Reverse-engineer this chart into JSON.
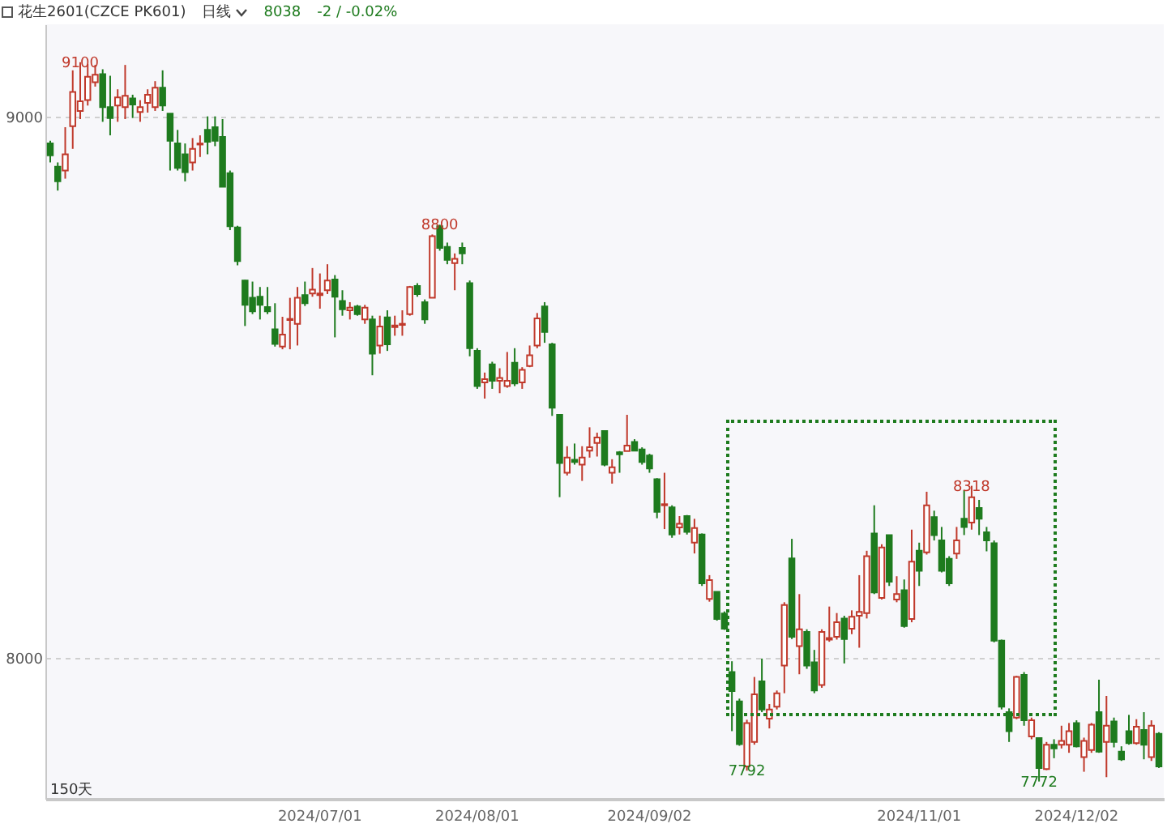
{
  "chart_data": {
    "type": "candlestick",
    "title": "花生2601(CZCE PK601)",
    "subtitle": "日线",
    "annotations": [
      "8038",
      "-2 / -0.02%",
      "150天",
      {
        "text": "9100",
        "y": 9100
      },
      {
        "text": "8800",
        "y": 8800
      },
      {
        "text": "8318",
        "y": 8318
      },
      {
        "text": "7792",
        "y": 7792
      },
      {
        "text": "7772",
        "y": 7772
      }
    ],
    "categories": [
      null,
      null,
      null,
      null,
      null,
      null,
      null,
      null,
      null,
      null,
      null,
      null,
      null,
      null,
      null,
      null,
      null,
      null,
      null,
      null,
      null,
      null,
      null,
      null,
      null,
      null,
      null,
      null,
      null,
      null,
      null,
      null,
      null,
      null,
      null,
      null,
      "2024/07/01",
      null,
      null,
      null,
      null,
      null,
      null,
      null,
      null,
      null,
      null,
      null,
      null,
      null,
      null,
      null,
      null,
      null,
      null,
      null,
      null,
      "2024/08/01",
      null,
      null,
      null,
      null,
      null,
      null,
      null,
      null,
      null,
      null,
      null,
      null,
      null,
      null,
      null,
      null,
      null,
      null,
      null,
      null,
      null,
      null,
      "2024/09/02",
      null,
      null,
      null,
      null,
      null,
      null,
      null,
      null,
      null,
      null,
      null,
      null,
      null,
      null,
      null,
      null,
      null,
      null,
      null,
      null,
      null,
      null,
      null,
      null,
      null,
      null,
      null,
      null,
      null,
      null,
      null,
      null,
      null,
      null,
      null,
      "2024/11/01",
      null,
      null,
      null,
      null,
      null,
      null,
      null,
      null,
      null,
      null,
      null,
      null,
      null,
      null,
      null,
      null,
      null,
      null,
      null,
      null,
      "2024/12/02",
      null,
      null,
      null,
      null,
      null,
      null,
      null,
      null,
      null,
      null,
      null
    ],
    "ohlc": [
      [
        8950,
        8955,
        8915,
        8928
      ],
      [
        8907,
        8915,
        8863,
        8880
      ],
      [
        8900,
        8980,
        8885,
        8930
      ],
      [
        8982,
        9085,
        8940,
        9045
      ],
      [
        9010,
        9100,
        8995,
        9028
      ],
      [
        9030,
        9097,
        9020,
        9073
      ],
      [
        9063,
        9095,
        9055,
        9077
      ],
      [
        9078,
        9087,
        8990,
        9017
      ],
      [
        9017,
        9075,
        8965,
        8997
      ],
      [
        9020,
        9050,
        8990,
        9035
      ],
      [
        9017,
        9095,
        8995,
        9038
      ],
      [
        9033,
        9040,
        8997,
        9022
      ],
      [
        9008,
        9030,
        8990,
        9017
      ],
      [
        9025,
        9050,
        9007,
        9040
      ],
      [
        9017,
        9065,
        9010,
        9053
      ],
      [
        9053,
        9085,
        9010,
        9020
      ],
      [
        9005,
        9005,
        8900,
        8955
      ],
      [
        8950,
        8975,
        8900,
        8905
      ],
      [
        8930,
        8950,
        8880,
        8897
      ],
      [
        8915,
        8960,
        8900,
        8940
      ],
      [
        8948,
        8965,
        8925,
        8950
      ],
      [
        8975,
        9000,
        8930,
        8953
      ],
      [
        8980,
        9000,
        8945,
        8955
      ],
      [
        8962,
        8995,
        8870,
        8870
      ],
      [
        8895,
        8900,
        8790,
        8797
      ],
      [
        8795,
        8798,
        8725,
        8733
      ],
      [
        8697,
        8698,
        8613,
        8652
      ],
      [
        8665,
        8695,
        8635,
        8640
      ],
      [
        8667,
        8685,
        8625,
        8652
      ],
      [
        8648,
        8685,
        8635,
        8640
      ],
      [
        8607,
        8655,
        8575,
        8580
      ],
      [
        8575,
        8630,
        8570,
        8597
      ],
      [
        8624,
        8665,
        8570,
        8626
      ],
      [
        8617,
        8685,
        8577,
        8665
      ],
      [
        8670,
        8695,
        8650,
        8655
      ],
      [
        8673,
        8720,
        8667,
        8680
      ],
      [
        8670,
        8710,
        8645,
        8673
      ],
      [
        8679,
        8727,
        8672,
        8697
      ],
      [
        8699,
        8707,
        8592,
        8667
      ],
      [
        8659,
        8679,
        8632,
        8644
      ],
      [
        8642,
        8657,
        8625,
        8647
      ],
      [
        8649,
        8652,
        8632,
        8635
      ],
      [
        8625,
        8652,
        8617,
        8647
      ],
      [
        8625,
        8632,
        8522,
        8562
      ],
      [
        8577,
        8632,
        8562,
        8612
      ],
      [
        8629,
        8642,
        8567,
        8579
      ],
      [
        8611,
        8632,
        8595,
        8614
      ],
      [
        8615,
        8642,
        8595,
        8617
      ],
      [
        8635,
        8687,
        8632,
        8685
      ],
      [
        8687,
        8692,
        8667,
        8672
      ],
      [
        8657,
        8662,
        8617,
        8625
      ],
      [
        8665,
        8782,
        8665,
        8779
      ],
      [
        8797,
        8800,
        8752,
        8757
      ],
      [
        8759,
        8767,
        8727,
        8735
      ],
      [
        8729,
        8747,
        8679,
        8737
      ],
      [
        8757,
        8767,
        8727,
        8747
      ],
      [
        8692,
        8697,
        8557,
        8572
      ],
      [
        8567,
        8572,
        8497,
        8502
      ],
      [
        8509,
        8527,
        8479,
        8515
      ],
      [
        8542,
        8547,
        8497,
        8512
      ],
      [
        8512,
        8535,
        8489,
        8517
      ],
      [
        8502,
        8565,
        8499,
        8512
      ],
      [
        8545,
        8572,
        8502,
        8507
      ],
      [
        8509,
        8537,
        8497,
        8532
      ],
      [
        8539,
        8577,
        8537,
        8559
      ],
      [
        8577,
        8637,
        8572,
        8627
      ],
      [
        8649,
        8657,
        8582,
        8602
      ],
      [
        8579,
        8582,
        8447,
        8462
      ],
      [
        8449,
        8449,
        8297,
        8360
      ],
      [
        8342,
        8391,
        8337,
        8370
      ],
      [
        8366,
        8396,
        8357,
        8362
      ],
      [
        8357,
        8391,
        8327,
        8370
      ],
      [
        8383,
        8426,
        8370,
        8389
      ],
      [
        8397,
        8416,
        8372,
        8407
      ],
      [
        8419,
        8419,
        8354,
        8357
      ],
      [
        8342,
        8367,
        8322,
        8352
      ],
      [
        8380,
        8382,
        8342,
        8376
      ],
      [
        8382,
        8449,
        8382,
        8392
      ],
      [
        8399,
        8404,
        8382,
        8383
      ],
      [
        8385,
        8389,
        8357,
        8362
      ],
      [
        8374,
        8377,
        8342,
        8350
      ],
      [
        8330,
        8332,
        8258,
        8270
      ],
      [
        8282,
        8342,
        8238,
        8284
      ],
      [
        8278,
        8282,
        8222,
        8228
      ],
      [
        8241,
        8262,
        8228,
        8248
      ],
      [
        8262,
        8264,
        8228,
        8233
      ],
      [
        8213,
        8257,
        8193,
        8240
      ],
      [
        8228,
        8230,
        8133,
        8138
      ],
      [
        8109,
        8153,
        8104,
        8144
      ],
      [
        8122,
        8122,
        8069,
        8072
      ],
      [
        8082,
        8086,
        8052,
        8054
      ],
      [
        7974,
        7994,
        7865,
        7939
      ],
      [
        7920,
        7925,
        7838,
        7841
      ],
      [
        7800,
        7886,
        7792,
        7880
      ],
      [
        7845,
        7965,
        7840,
        7933
      ],
      [
        7957,
        7999,
        7900,
        7905
      ],
      [
        7888,
        7915,
        7870,
        7905
      ],
      [
        7910,
        7940,
        7905,
        7935
      ],
      [
        7986,
        8103,
        7935,
        8098
      ],
      [
        8184,
        8220,
        8035,
        8039
      ],
      [
        8022,
        8118,
        7970,
        8053
      ],
      [
        8048,
        8053,
        7980,
        7986
      ],
      [
        7992,
        8015,
        7935,
        7940
      ],
      [
        7950,
        8053,
        7945,
        8048
      ],
      [
        8034,
        8095,
        8030,
        8037
      ],
      [
        8039,
        8083,
        8034,
        8066
      ],
      [
        8073,
        8078,
        7990,
        8035
      ],
      [
        8054,
        8088,
        8044,
        8076
      ],
      [
        8078,
        8153,
        8019,
        8085
      ],
      [
        8083,
        8198,
        8073,
        8188
      ],
      [
        8230,
        8282,
        8118,
        8121
      ],
      [
        8111,
        8210,
        8108,
        8204
      ],
      [
        8227,
        8227,
        8133,
        8141
      ],
      [
        8108,
        8151,
        8103,
        8118
      ],
      [
        8125,
        8145,
        8056,
        8059
      ],
      [
        8072,
        8237,
        8066,
        8178
      ],
      [
        8198,
        8213,
        8133,
        8161
      ],
      [
        8195,
        8307,
        8191,
        8282
      ],
      [
        8260,
        8272,
        8217,
        8227
      ],
      [
        8217,
        8242,
        8158,
        8161
      ],
      [
        8183,
        8188,
        8133,
        8138
      ],
      [
        8193,
        8242,
        8183,
        8217
      ],
      [
        8257,
        8310,
        8227,
        8242
      ],
      [
        8250,
        8318,
        8237,
        8297
      ],
      [
        8277,
        8292,
        8227,
        8257
      ],
      [
        8232,
        8242,
        8197,
        8217
      ],
      [
        8212,
        8217,
        8029,
        8032
      ],
      [
        8032,
        8034,
        7905,
        7910
      ],
      [
        7900,
        7907,
        7845,
        7865
      ],
      [
        7890,
        7967,
        7887,
        7965
      ],
      [
        7969,
        7974,
        7875,
        7885
      ],
      [
        7855,
        7890,
        7850,
        7885
      ],
      [
        7852,
        7852,
        7772,
        7797
      ],
      [
        7795,
        7845,
        7793,
        7840
      ],
      [
        7840,
        7850,
        7815,
        7833
      ],
      [
        7840,
        7875,
        7833,
        7847
      ],
      [
        7840,
        7880,
        7825,
        7865
      ],
      [
        7880,
        7885,
        7835,
        7837
      ],
      [
        7817,
        7853,
        7790,
        7847
      ],
      [
        7830,
        7880,
        7825,
        7877
      ],
      [
        7900,
        7960,
        7825,
        7827
      ],
      [
        7845,
        7930,
        7780,
        7875
      ],
      [
        7883,
        7890,
        7835,
        7845
      ],
      [
        7827,
        7837,
        7810,
        7813
      ],
      [
        7865,
        7895,
        7840,
        7843
      ],
      [
        7843,
        7887,
        7840,
        7873
      ],
      [
        7867,
        7900,
        7813,
        7840
      ],
      [
        7817,
        7885,
        7810,
        7875
      ],
      [
        7860,
        7863,
        7797,
        7800
      ]
    ],
    "colors": [
      "#1e7b1e",
      "#1e7b1e",
      "#c0392b",
      "#c0392b",
      "#c0392b",
      "#c0392b",
      "#c0392b",
      "#1e7b1e",
      "#1e7b1e",
      "#c0392b",
      "#c0392b",
      "#1e7b1e",
      "#c0392b",
      "#c0392b",
      "#c0392b",
      "#1e7b1e",
      "#1e7b1e",
      "#1e7b1e",
      "#1e7b1e",
      "#c0392b",
      "#c0392b",
      "#1e7b1e",
      "#1e7b1e",
      "#1e7b1e",
      "#1e7b1e",
      "#1e7b1e",
      "#1e7b1e",
      "#1e7b1e",
      "#1e7b1e",
      "#1e7b1e",
      "#1e7b1e",
      "#c0392b",
      "#c0392b",
      "#c0392b",
      "#1e7b1e",
      "#c0392b",
      "#c0392b",
      "#c0392b",
      "#1e7b1e",
      "#1e7b1e",
      "#c0392b",
      "#1e7b1e",
      "#c0392b",
      "#1e7b1e",
      "#c0392b",
      "#1e7b1e",
      "#c0392b",
      "#c0392b",
      "#c0392b",
      "#1e7b1e",
      "#1e7b1e",
      "#c0392b",
      "#1e7b1e",
      "#1e7b1e",
      "#c0392b",
      "#1e7b1e",
      "#1e7b1e",
      "#1e7b1e",
      "#c0392b",
      "#1e7b1e",
      "#c0392b",
      "#c0392b",
      "#1e7b1e",
      "#c0392b",
      "#c0392b",
      "#c0392b",
      "#1e7b1e",
      "#1e7b1e",
      "#1e7b1e",
      "#c0392b",
      "#1e7b1e",
      "#c0392b",
      "#c0392b",
      "#c0392b",
      "#1e7b1e",
      "#c0392b",
      "#1e7b1e",
      "#c0392b",
      "#1e7b1e",
      "#1e7b1e",
      "#1e7b1e",
      "#1e7b1e",
      "#c0392b",
      "#1e7b1e",
      "#c0392b",
      "#1e7b1e",
      "#c0392b",
      "#1e7b1e",
      "#c0392b",
      "#1e7b1e",
      "#1e7b1e",
      "#1e7b1e",
      "#1e7b1e",
      "#c0392b",
      "#c0392b",
      "#1e7b1e",
      "#c0392b",
      "#c0392b",
      "#c0392b",
      "#1e7b1e",
      "#c0392b",
      "#1e7b1e",
      "#1e7b1e",
      "#c0392b",
      "#c0392b",
      "#c0392b",
      "#1e7b1e",
      "#c0392b",
      "#c0392b",
      "#c0392b",
      "#1e7b1e",
      "#c0392b",
      "#1e7b1e",
      "#c0392b",
      "#1e7b1e",
      "#c0392b",
      "#1e7b1e",
      "#c0392b",
      "#1e7b1e",
      "#1e7b1e",
      "#1e7b1e",
      "#c0392b",
      "#1e7b1e",
      "#c0392b",
      "#1e7b1e",
      "#1e7b1e",
      "#1e7b1e",
      "#1e7b1e",
      "#1e7b1e",
      "#c0392b",
      "#1e7b1e",
      "#c0392b",
      "#1e7b1e",
      "#c0392b",
      "#1e7b1e",
      "#c0392b",
      "#c0392b",
      "#1e7b1e",
      "#c0392b",
      "#c0392b",
      "#1e7b1e",
      "#c0392b",
      "#1e7b1e",
      "#1e7b1e",
      "#1e7b1e",
      "#c0392b",
      "#1e7b1e",
      "#c0392b",
      "#1e7b1e"
    ],
    "ylim": [
      7740,
      9170
    ],
    "yticks": [
      8000,
      9000
    ],
    "grid": "y"
  }
}
